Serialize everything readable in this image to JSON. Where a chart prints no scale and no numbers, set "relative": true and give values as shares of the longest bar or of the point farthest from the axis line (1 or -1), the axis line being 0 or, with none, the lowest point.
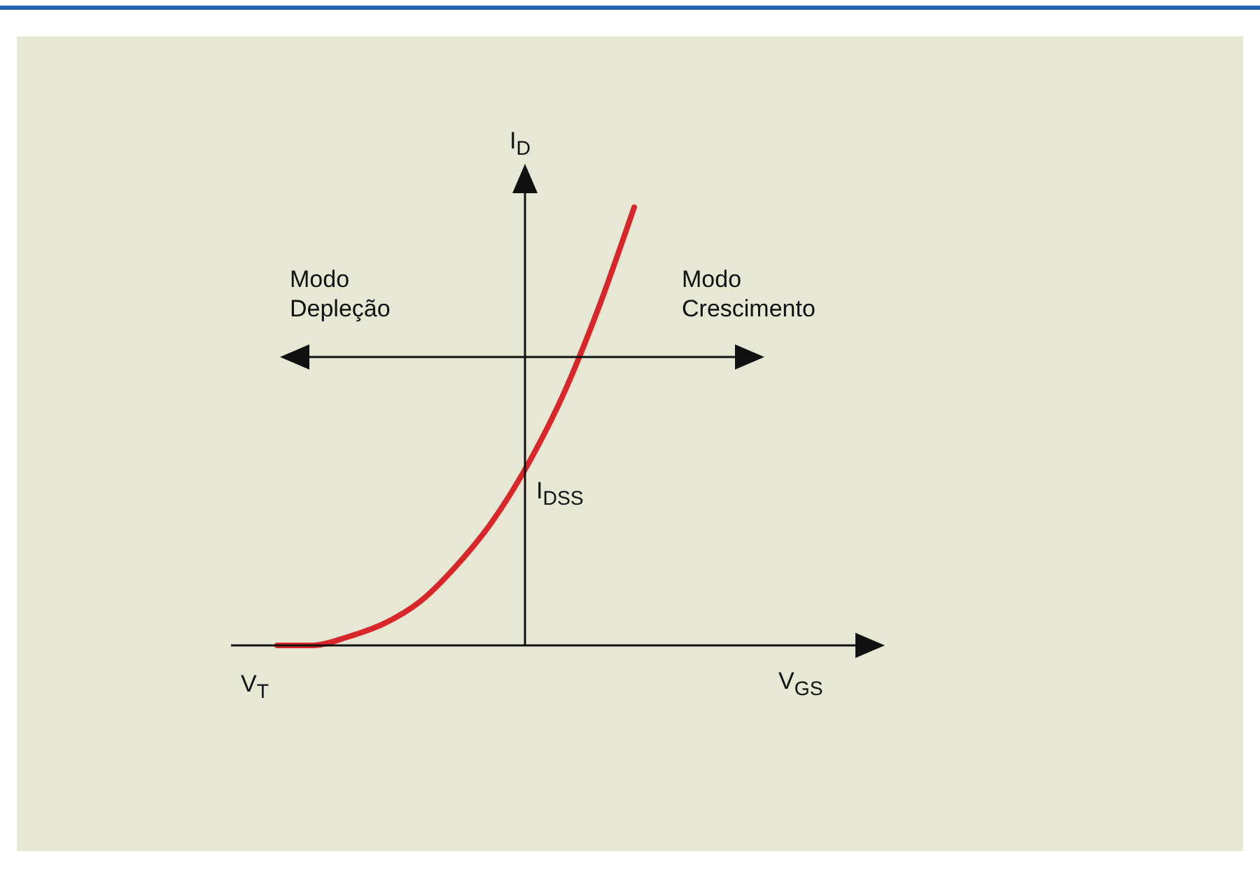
{
  "chart_data": {
    "type": "line",
    "relative": true,
    "categories": [
      null,
      null,
      null,
      null,
      null,
      null,
      null,
      null,
      null,
      null,
      null
    ],
    "series": [
      {
        "color": "#d9262b",
        "values": [
          0,
          0,
          0.02,
          0.05,
          0.1,
          0.18,
          0.28,
          0.41,
          0.57,
          0.77,
          1
        ]
      }
    ],
    "annotations": [
      "Modo Depleção",
      "Modo Crescimento",
      "V$_{T}$",
      "I$_{DSS}$",
      "I$_{D}$",
      "V$_{GS}$"
    ]
  }
}
